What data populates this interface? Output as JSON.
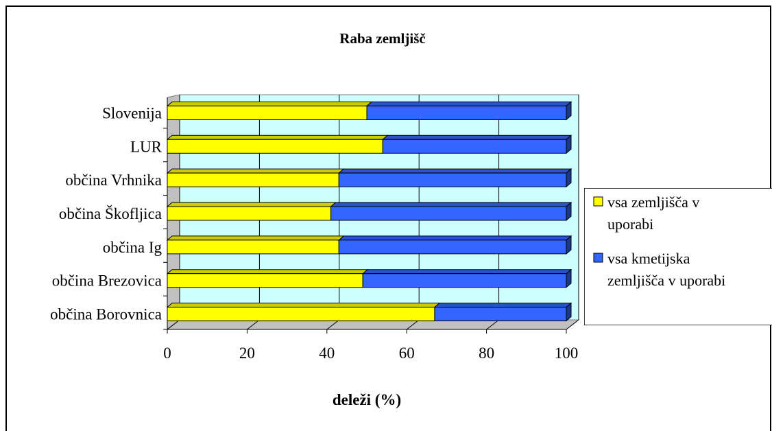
{
  "chart_data": {
    "type": "bar",
    "stacked": true,
    "orientation": "horizontal",
    "title": "Raba zemljišč",
    "xlabel": "deleži (%)",
    "ylabel": "",
    "xlim": [
      0,
      100
    ],
    "x_ticks": [
      0,
      20,
      40,
      60,
      80,
      100
    ],
    "grid": true,
    "legend_position": "right",
    "categories": [
      "občina Borovnica",
      "občina Brezovica",
      "občina Ig",
      "občina Škofljica",
      "občina Vrhnika",
      "LUR",
      "Slovenija"
    ],
    "series": [
      {
        "name": "vsa zemljišča v uporabi",
        "legend_lines": [
          "vsa zemljišča v",
          "uporabi"
        ],
        "color": "#FFFF00",
        "values": [
          67,
          49,
          43,
          41,
          43,
          54,
          50
        ]
      },
      {
        "name": "vsa kmetijska zemljišča v uporabi",
        "legend_lines": [
          "vsa kmetijska",
          "zemljišča v uporabi"
        ],
        "color": "#3366FF",
        "values": [
          33,
          51,
          57,
          59,
          57,
          46,
          50
        ]
      }
    ],
    "plot_background": "#CCFFFF"
  }
}
